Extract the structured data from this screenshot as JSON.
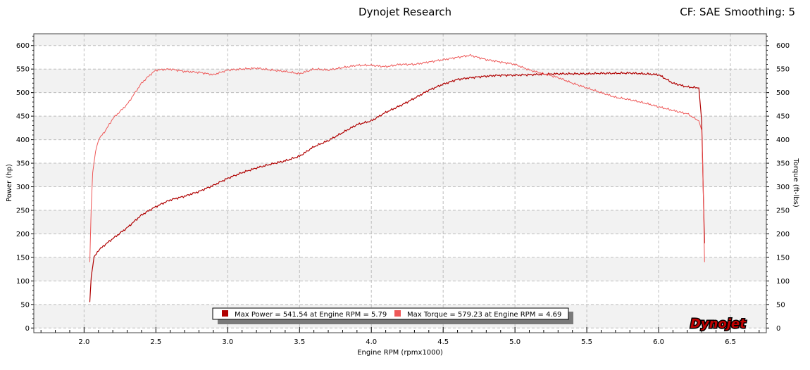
{
  "header": {
    "title": "Dynojet Research",
    "correction": "CF: SAE",
    "smoothing": "Smoothing: 5"
  },
  "logo_text": "Dynojet",
  "colors": {
    "power": "#b00000",
    "torque": "#ee5858",
    "band": "#f2f2f2",
    "grid": "#bdbdbd"
  },
  "chart_data": {
    "type": "line",
    "xlabel": "Engine RPM (rpmx1000)",
    "ylabel_left": "Power (hp)",
    "ylabel_right": "Torque (ft-lbs)",
    "xlim": [
      1.65,
      6.75
    ],
    "ylim": [
      -10,
      625
    ],
    "x_ticks": [
      "2.0",
      "2.5",
      "3.0",
      "3.5",
      "4.0",
      "4.5",
      "5.0",
      "5.5",
      "6.0",
      "6.5"
    ],
    "y_ticks": [
      "0",
      "50",
      "100",
      "150",
      "200",
      "250",
      "300",
      "350",
      "400",
      "450",
      "500",
      "550",
      "600"
    ],
    "grid": true,
    "series": [
      {
        "key": "power",
        "x": [
          2.04,
          2.05,
          2.07,
          2.1,
          2.15,
          2.2,
          2.3,
          2.4,
          2.5,
          2.6,
          2.7,
          2.8,
          2.9,
          3.0,
          3.1,
          3.2,
          3.3,
          3.4,
          3.5,
          3.6,
          3.7,
          3.8,
          3.9,
          4.0,
          4.1,
          4.2,
          4.3,
          4.4,
          4.5,
          4.6,
          4.7,
          4.8,
          4.9,
          5.0,
          5.1,
          5.2,
          5.3,
          5.4,
          5.5,
          5.6,
          5.7,
          5.79,
          5.9,
          6.0,
          6.1,
          6.2,
          6.28,
          6.3,
          6.31,
          6.32
        ],
        "y": [
          55,
          110,
          150,
          165,
          178,
          190,
          213,
          240,
          258,
          272,
          280,
          290,
          303,
          318,
          330,
          340,
          348,
          355,
          365,
          385,
          398,
          415,
          432,
          440,
          458,
          472,
          488,
          505,
          518,
          528,
          532,
          535,
          537,
          537,
          538,
          539,
          540,
          540,
          540,
          541,
          541,
          541.54,
          540,
          538,
          520,
          512,
          510,
          440,
          300,
          180
        ]
      },
      {
        "key": "torque",
        "x": [
          2.04,
          2.05,
          2.06,
          2.08,
          2.1,
          2.15,
          2.2,
          2.3,
          2.4,
          2.45,
          2.5,
          2.6,
          2.7,
          2.8,
          2.9,
          3.0,
          3.1,
          3.2,
          3.3,
          3.4,
          3.5,
          3.6,
          3.7,
          3.8,
          3.9,
          4.0,
          4.1,
          4.2,
          4.3,
          4.4,
          4.5,
          4.6,
          4.69,
          4.8,
          4.9,
          5.0,
          5.1,
          5.2,
          5.3,
          5.4,
          5.5,
          5.6,
          5.7,
          5.8,
          5.9,
          6.0,
          6.1,
          6.2,
          6.28,
          6.3,
          6.31,
          6.32
        ],
        "y": [
          140,
          260,
          330,
          375,
          400,
          420,
          445,
          475,
          520,
          535,
          548,
          550,
          545,
          543,
          538,
          548,
          550,
          552,
          548,
          545,
          540,
          550,
          548,
          553,
          558,
          558,
          555,
          560,
          560,
          565,
          570,
          575,
          579.23,
          570,
          565,
          560,
          548,
          540,
          532,
          520,
          510,
          500,
          490,
          485,
          478,
          470,
          462,
          455,
          440,
          420,
          300,
          140
        ]
      }
    ],
    "legend": [
      {
        "key": "power",
        "text": "Max Power = 541.54 at Engine RPM = 5.79"
      },
      {
        "key": "torque",
        "text": "Max Torque = 579.23 at Engine RPM = 4.69"
      }
    ]
  }
}
